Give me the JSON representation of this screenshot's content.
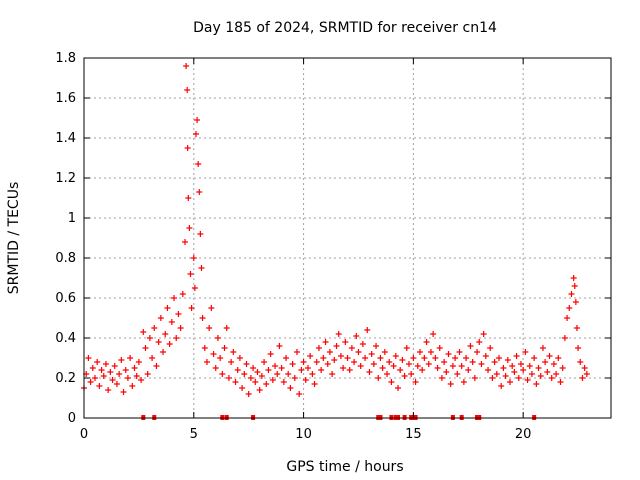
{
  "chart_data": {
    "type": "scatter",
    "title": "Day 185 of 2024, SRMTID for receiver cn14",
    "xlabel": "GPS time / hours",
    "ylabel": "SRMTID / TECUs",
    "xlim": [
      0,
      24
    ],
    "ylim": [
      0,
      1.8
    ],
    "xticks": [
      0,
      5,
      10,
      15,
      20
    ],
    "yticks": [
      0,
      0.2,
      0.4,
      0.6,
      0.8,
      1,
      1.2,
      1.4,
      1.6,
      1.8
    ],
    "ytick_labels": [
      "0",
      "0.2",
      "0.4",
      "0.6",
      "0.8",
      "1",
      "1.2",
      "1.4",
      "1.6",
      "1.8"
    ],
    "grid": true,
    "marker": "+",
    "color": "#ff0000",
    "series": [
      {
        "name": "SRMTID",
        "points": [
          [
            0.0,
            0.15
          ],
          [
            0.1,
            0.22
          ],
          [
            0.2,
            0.3
          ],
          [
            0.3,
            0.18
          ],
          [
            0.4,
            0.25
          ],
          [
            0.5,
            0.2
          ],
          [
            0.6,
            0.28
          ],
          [
            0.7,
            0.16
          ],
          [
            0.8,
            0.24
          ],
          [
            0.9,
            0.21
          ],
          [
            1.0,
            0.27
          ],
          [
            1.1,
            0.14
          ],
          [
            1.2,
            0.23
          ],
          [
            1.3,
            0.19
          ],
          [
            1.4,
            0.26
          ],
          [
            1.5,
            0.17
          ],
          [
            1.6,
            0.22
          ],
          [
            1.7,
            0.29
          ],
          [
            1.8,
            0.13
          ],
          [
            1.9,
            0.24
          ],
          [
            2.0,
            0.2
          ],
          [
            2.1,
            0.3
          ],
          [
            2.2,
            0.16
          ],
          [
            2.3,
            0.25
          ],
          [
            2.4,
            0.21
          ],
          [
            2.5,
            0.28
          ],
          [
            2.6,
            0.19
          ],
          [
            2.7,
            0.43
          ],
          [
            2.8,
            0.35
          ],
          [
            2.9,
            0.22
          ],
          [
            3.0,
            0.4
          ],
          [
            3.1,
            0.3
          ],
          [
            3.2,
            0.45
          ],
          [
            3.3,
            0.26
          ],
          [
            3.4,
            0.38
          ],
          [
            3.5,
            0.5
          ],
          [
            3.6,
            0.33
          ],
          [
            3.7,
            0.42
          ],
          [
            3.8,
            0.55
          ],
          [
            3.9,
            0.37
          ],
          [
            4.0,
            0.48
          ],
          [
            4.1,
            0.6
          ],
          [
            4.2,
            0.4
          ],
          [
            4.3,
            0.52
          ],
          [
            4.4,
            0.45
          ],
          [
            4.5,
            0.62
          ],
          [
            4.6,
            0.88
          ],
          [
            4.65,
            1.76
          ],
          [
            4.7,
            1.64
          ],
          [
            4.72,
            1.35
          ],
          [
            4.75,
            1.1
          ],
          [
            4.8,
            0.95
          ],
          [
            4.85,
            0.72
          ],
          [
            4.9,
            0.55
          ],
          [
            5.0,
            0.8
          ],
          [
            5.05,
            0.65
          ],
          [
            5.1,
            1.42
          ],
          [
            5.15,
            1.49
          ],
          [
            5.2,
            1.27
          ],
          [
            5.25,
            1.13
          ],
          [
            5.3,
            0.92
          ],
          [
            5.35,
            0.75
          ],
          [
            5.4,
            0.5
          ],
          [
            5.5,
            0.35
          ],
          [
            5.6,
            0.28
          ],
          [
            5.7,
            0.45
          ],
          [
            5.8,
            0.55
          ],
          [
            5.9,
            0.32
          ],
          [
            6.0,
            0.25
          ],
          [
            6.1,
            0.4
          ],
          [
            6.2,
            0.3
          ],
          [
            6.3,
            0.22
          ],
          [
            6.4,
            0.35
          ],
          [
            6.5,
            0.45
          ],
          [
            6.6,
            0.2
          ],
          [
            6.7,
            0.28
          ],
          [
            6.8,
            0.33
          ],
          [
            6.9,
            0.18
          ],
          [
            7.0,
            0.24
          ],
          [
            7.1,
            0.3
          ],
          [
            7.2,
            0.15
          ],
          [
            7.3,
            0.22
          ],
          [
            7.4,
            0.27
          ],
          [
            7.5,
            0.12
          ],
          [
            7.6,
            0.2
          ],
          [
            7.7,
            0.25
          ],
          [
            7.8,
            0.18
          ],
          [
            7.9,
            0.23
          ],
          [
            8.0,
            0.14
          ],
          [
            8.1,
            0.21
          ],
          [
            8.2,
            0.28
          ],
          [
            8.3,
            0.17
          ],
          [
            8.4,
            0.24
          ],
          [
            8.5,
            0.32
          ],
          [
            8.6,
            0.19
          ],
          [
            8.7,
            0.26
          ],
          [
            8.8,
            0.22
          ],
          [
            8.9,
            0.36
          ],
          [
            9.0,
            0.25
          ],
          [
            9.1,
            0.18
          ],
          [
            9.2,
            0.3
          ],
          [
            9.3,
            0.22
          ],
          [
            9.4,
            0.15
          ],
          [
            9.5,
            0.27
          ],
          [
            9.6,
            0.2
          ],
          [
            9.7,
            0.33
          ],
          [
            9.8,
            0.12
          ],
          [
            9.9,
            0.24
          ],
          [
            10.0,
            0.28
          ],
          [
            10.1,
            0.19
          ],
          [
            10.2,
            0.25
          ],
          [
            10.3,
            0.31
          ],
          [
            10.4,
            0.22
          ],
          [
            10.5,
            0.17
          ],
          [
            10.6,
            0.28
          ],
          [
            10.7,
            0.35
          ],
          [
            10.8,
            0.24
          ],
          [
            10.9,
            0.3
          ],
          [
            11.0,
            0.38
          ],
          [
            11.1,
            0.27
          ],
          [
            11.2,
            0.33
          ],
          [
            11.3,
            0.22
          ],
          [
            11.4,
            0.29
          ],
          [
            11.5,
            0.36
          ],
          [
            11.6,
            0.42
          ],
          [
            11.7,
            0.31
          ],
          [
            11.8,
            0.25
          ],
          [
            11.9,
            0.38
          ],
          [
            12.0,
            0.3
          ],
          [
            12.1,
            0.24
          ],
          [
            12.2,
            0.35
          ],
          [
            12.3,
            0.28
          ],
          [
            12.4,
            0.41
          ],
          [
            12.5,
            0.33
          ],
          [
            12.6,
            0.26
          ],
          [
            12.7,
            0.37
          ],
          [
            12.8,
            0.3
          ],
          [
            12.9,
            0.44
          ],
          [
            13.0,
            0.23
          ],
          [
            13.1,
            0.32
          ],
          [
            13.2,
            0.27
          ],
          [
            13.3,
            0.36
          ],
          [
            13.4,
            0.2
          ],
          [
            13.5,
            0.3
          ],
          [
            13.6,
            0.25
          ],
          [
            13.7,
            0.33
          ],
          [
            13.8,
            0.22
          ],
          [
            13.9,
            0.28
          ],
          [
            14.0,
            0.18
          ],
          [
            14.1,
            0.26
          ],
          [
            14.2,
            0.31
          ],
          [
            14.3,
            0.15
          ],
          [
            14.4,
            0.24
          ],
          [
            14.5,
            0.29
          ],
          [
            14.6,
            0.21
          ],
          [
            14.7,
            0.35
          ],
          [
            14.8,
            0.27
          ],
          [
            14.9,
            0.22
          ],
          [
            15.0,
            0.3
          ],
          [
            15.1,
            0.18
          ],
          [
            15.2,
            0.26
          ],
          [
            15.3,
            0.33
          ],
          [
            15.4,
            0.24
          ],
          [
            15.5,
            0.3
          ],
          [
            15.6,
            0.38
          ],
          [
            15.7,
            0.27
          ],
          [
            15.8,
            0.33
          ],
          [
            15.9,
            0.42
          ],
          [
            16.0,
            0.3
          ],
          [
            16.1,
            0.25
          ],
          [
            16.2,
            0.35
          ],
          [
            16.3,
            0.2
          ],
          [
            16.4,
            0.28
          ],
          [
            16.5,
            0.23
          ],
          [
            16.6,
            0.32
          ],
          [
            16.7,
            0.17
          ],
          [
            16.8,
            0.26
          ],
          [
            16.9,
            0.3
          ],
          [
            17.0,
            0.22
          ],
          [
            17.1,
            0.33
          ],
          [
            17.2,
            0.26
          ],
          [
            17.3,
            0.18
          ],
          [
            17.4,
            0.3
          ],
          [
            17.5,
            0.24
          ],
          [
            17.6,
            0.36
          ],
          [
            17.7,
            0.28
          ],
          [
            17.8,
            0.2
          ],
          [
            17.9,
            0.33
          ],
          [
            18.0,
            0.38
          ],
          [
            18.1,
            0.27
          ],
          [
            18.2,
            0.42
          ],
          [
            18.3,
            0.31
          ],
          [
            18.4,
            0.24
          ],
          [
            18.5,
            0.35
          ],
          [
            18.6,
            0.2
          ],
          [
            18.7,
            0.28
          ],
          [
            18.8,
            0.22
          ],
          [
            18.9,
            0.3
          ],
          [
            19.0,
            0.16
          ],
          [
            19.1,
            0.25
          ],
          [
            19.2,
            0.21
          ],
          [
            19.3,
            0.29
          ],
          [
            19.4,
            0.18
          ],
          [
            19.5,
            0.26
          ],
          [
            19.6,
            0.23
          ],
          [
            19.7,
            0.31
          ],
          [
            19.8,
            0.2
          ],
          [
            19.9,
            0.27
          ],
          [
            20.0,
            0.24
          ],
          [
            20.1,
            0.33
          ],
          [
            20.2,
            0.19
          ],
          [
            20.3,
            0.26
          ],
          [
            20.4,
            0.22
          ],
          [
            20.5,
            0.3
          ],
          [
            20.6,
            0.17
          ],
          [
            20.7,
            0.25
          ],
          [
            20.8,
            0.21
          ],
          [
            20.9,
            0.35
          ],
          [
            21.0,
            0.28
          ],
          [
            21.1,
            0.23
          ],
          [
            21.2,
            0.31
          ],
          [
            21.3,
            0.2
          ],
          [
            21.4,
            0.27
          ],
          [
            21.5,
            0.22
          ],
          [
            21.6,
            0.3
          ],
          [
            21.7,
            0.18
          ],
          [
            21.8,
            0.25
          ],
          [
            21.9,
            0.4
          ],
          [
            22.0,
            0.5
          ],
          [
            22.1,
            0.55
          ],
          [
            22.2,
            0.62
          ],
          [
            22.3,
            0.7
          ],
          [
            22.35,
            0.66
          ],
          [
            22.4,
            0.58
          ],
          [
            22.45,
            0.45
          ],
          [
            22.5,
            0.35
          ],
          [
            22.6,
            0.28
          ],
          [
            22.7,
            0.2
          ],
          [
            22.8,
            0.25
          ],
          [
            22.9,
            0.22
          ]
        ]
      }
    ],
    "baseline_marks_x": [
      2.7,
      3.2,
      6.3,
      6.5,
      7.7,
      13.4,
      13.5,
      14.0,
      14.2,
      14.3,
      14.6,
      14.9,
      15.0,
      15.1,
      16.8,
      17.2,
      17.9,
      18.0,
      20.5
    ]
  }
}
